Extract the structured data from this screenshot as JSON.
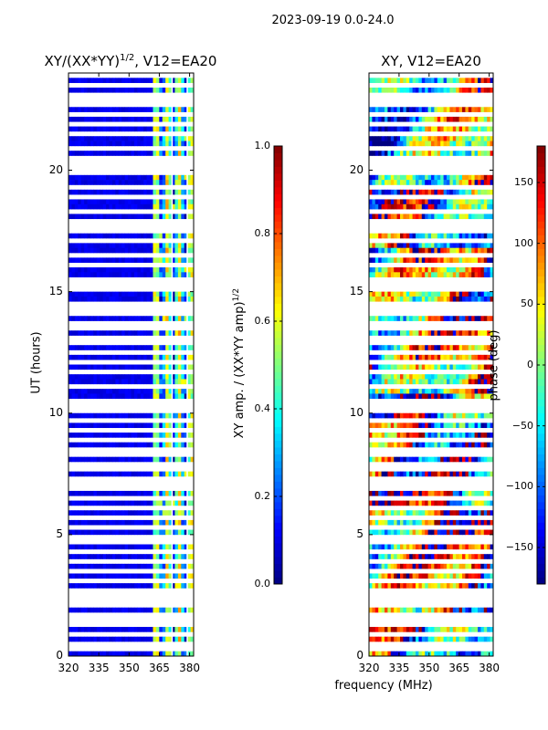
{
  "suptitle": "2023-09-19 0.0-24.0",
  "chart_data": [
    {
      "type": "heatmap",
      "title_main": "XY/(XX*YY)",
      "title_sup": "1/2",
      "title_tail": ", V12=EA20",
      "xlabel": "",
      "ylabel": "UT (hours)",
      "xlim": [
        320,
        382
      ],
      "ylim": [
        0,
        24
      ],
      "xticks": [
        "320",
        "335",
        "350",
        "365",
        "380"
      ],
      "xtick_values": [
        320,
        335,
        350,
        365,
        380
      ],
      "yticks": [
        "0",
        "5",
        "10",
        "15",
        "20"
      ],
      "ytick_values": [
        0,
        5,
        10,
        15,
        20
      ],
      "colorbar": {
        "label_main": "XY amp. / (XX*YY amp)",
        "label_sup": "1/2",
        "range": [
          0.0,
          1.0
        ],
        "ticks": [
          "0.0",
          "0.2",
          "0.4",
          "0.6",
          "0.8",
          "1.0"
        ],
        "tick_values": [
          0.0,
          0.2,
          0.4,
          0.6,
          0.8,
          1.0
        ],
        "colormap": "jet"
      }
    },
    {
      "type": "heatmap",
      "title": "XY, V12=EA20",
      "xlabel": "frequency (MHz)",
      "ylabel": "",
      "xlim": [
        320,
        382
      ],
      "ylim": [
        0,
        24
      ],
      "xticks": [
        "320",
        "335",
        "350",
        "365",
        "380"
      ],
      "xtick_values": [
        320,
        335,
        350,
        365,
        380
      ],
      "yticks": [
        "0",
        "5",
        "10",
        "15",
        "20"
      ],
      "ytick_values": [
        0,
        5,
        10,
        15,
        20
      ],
      "colorbar": {
        "label": "phase (deg)",
        "range": [
          -180,
          180
        ],
        "ticks": [
          "−150",
          "−100",
          "−50",
          "0",
          "50",
          "100",
          "150"
        ],
        "tick_values": [
          -150,
          -100,
          -50,
          0,
          50,
          100,
          150
        ],
        "colormap": "jet"
      }
    }
  ]
}
